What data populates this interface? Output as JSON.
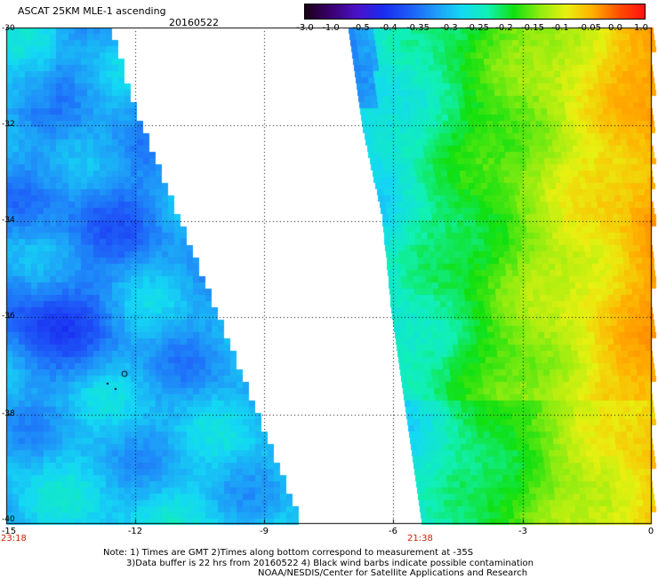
{
  "header": {
    "title": "ASCAT 25KM MLE-1 ascending",
    "date": "20160522"
  },
  "colorbar": {
    "ticks": [
      "-3.0",
      "-1.0",
      "-0.5",
      "-0.4",
      "-0.35",
      "-0.3",
      "-0.25",
      "-0.2",
      "-0.15",
      "-0.1",
      "-0.05",
      "0.0",
      "1.0"
    ],
    "colors": [
      "#1a0018",
      "#3a0070",
      "#4a12c8",
      "#1a2cf0",
      "#1e5cf8",
      "#1e9af8",
      "#14d8f4",
      "#10f0b4",
      "#10e010",
      "#90ec10",
      "#e8f010",
      "#ffb000",
      "#ff5000",
      "#ff1010"
    ]
  },
  "map": {
    "lat_labels": [
      "-30",
      "-32",
      "-34",
      "-36",
      "-38",
      "-40"
    ],
    "lon_labels": [
      "-15",
      "-12",
      "-9",
      "-6",
      "-3",
      "0"
    ],
    "pass_times": [
      "23:18",
      "21:38"
    ]
  },
  "notes": [
    "Note: 1) Times are GMT 2)Times along bottom correspond to measurement at -35S",
    "3)Data buffer is 22 hrs from 20160522 4) Black wind barbs indicate possible contamination",
    "NOAA/NESDIS/Center for Satellite Applications and Research"
  ]
}
